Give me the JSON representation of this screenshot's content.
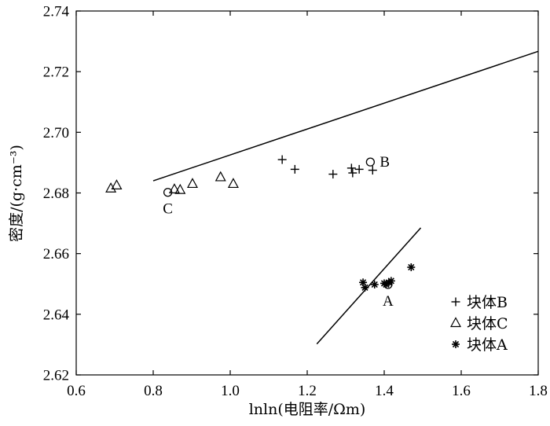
{
  "chart_data": {
    "type": "scatter",
    "title": "",
    "xlabel": "lnln(电阻率/Ωm)",
    "ylabel": "密度/(g·cm⁻³)",
    "xlim": [
      0.6,
      1.8
    ],
    "ylim": [
      2.62,
      2.74
    ],
    "xticks": [
      "0.6",
      "0.8",
      "1.0",
      "1.2",
      "1.4",
      "1.6",
      "1.8"
    ],
    "yticks": [
      "2.62",
      "2.64",
      "2.66",
      "2.68",
      "2.70",
      "2.72",
      "2.74"
    ],
    "grid": false,
    "legend_position": "bottom-right",
    "series": [
      {
        "name": "块体B",
        "marker": "plus",
        "points": [
          {
            "x": 1.135,
            "y": 2.691
          },
          {
            "x": 1.168,
            "y": 2.6878
          },
          {
            "x": 1.267,
            "y": 2.6862
          },
          {
            "x": 1.315,
            "y": 2.6882
          },
          {
            "x": 1.318,
            "y": 2.6866
          },
          {
            "x": 1.335,
            "y": 2.6878
          },
          {
            "x": 1.37,
            "y": 2.6875
          }
        ]
      },
      {
        "name": "块体C",
        "marker": "triangle",
        "points": [
          {
            "x": 0.69,
            "y": 2.6815
          },
          {
            "x": 0.705,
            "y": 2.6825
          },
          {
            "x": 0.855,
            "y": 2.6812
          },
          {
            "x": 0.87,
            "y": 2.681
          },
          {
            "x": 0.902,
            "y": 2.683
          },
          {
            "x": 0.975,
            "y": 2.6852
          },
          {
            "x": 1.008,
            "y": 2.683
          }
        ]
      },
      {
        "name": "块体A",
        "marker": "asterisk",
        "points": [
          {
            "x": 1.345,
            "y": 2.6505
          },
          {
            "x": 1.35,
            "y": 2.6488
          },
          {
            "x": 1.375,
            "y": 2.6498
          },
          {
            "x": 1.4,
            "y": 2.6502
          },
          {
            "x": 1.405,
            "y": 2.6498
          },
          {
            "x": 1.412,
            "y": 2.6505
          },
          {
            "x": 1.418,
            "y": 2.651
          },
          {
            "x": 1.47,
            "y": 2.6555
          }
        ]
      }
    ],
    "centroids": [
      {
        "label": "B",
        "x": 1.364,
        "y": 2.6902,
        "label_side": "right"
      },
      {
        "label": "C",
        "x": 0.838,
        "y": 2.6802,
        "label_side": "below"
      },
      {
        "label": "A",
        "x": 1.41,
        "y": 2.6498,
        "label_side": "below"
      }
    ],
    "fit_lines": [
      {
        "x": [
          0.8,
          1.8
        ],
        "y": [
          2.684,
          2.7267
        ]
      },
      {
        "x": [
          1.225,
          1.495
        ],
        "y": [
          2.6302,
          2.6685
        ]
      }
    ]
  }
}
